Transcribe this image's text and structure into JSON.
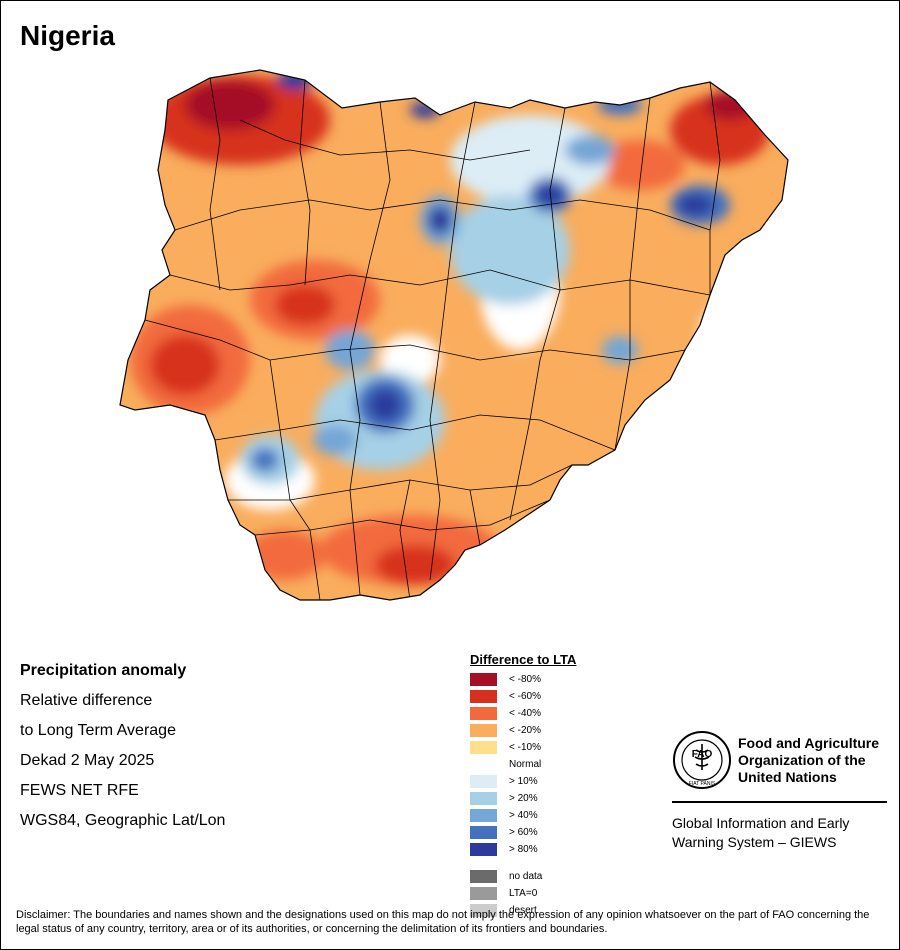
{
  "title": "Nigeria",
  "info": {
    "heading": "Precipitation anomaly",
    "line1": "Relative difference",
    "line2": "to Long Term Average",
    "period": "Dekad 2 May 2025",
    "source": "FEWS NET RFE",
    "projection": "WGS84, Geographic Lat/Lon"
  },
  "legend": {
    "title": "Difference to LTA",
    "classes": [
      {
        "label": "< -80%",
        "color": "#a50f26"
      },
      {
        "label": "< -60%",
        "color": "#d7301f"
      },
      {
        "label": "< -40%",
        "color": "#f26a3c"
      },
      {
        "label": "< -20%",
        "color": "#f9ad5d"
      },
      {
        "label": "< -10%",
        "color": "#fee08b"
      },
      {
        "label": "Normal",
        "color": "#ffffff"
      },
      {
        "label": "> 10%",
        "color": "#dcedf6"
      },
      {
        "label": "> 20%",
        "color": "#a6d0e6"
      },
      {
        "label": "> 40%",
        "color": "#74a6d6"
      },
      {
        "label": "> 60%",
        "color": "#4371c0"
      },
      {
        "label": "> 80%",
        "color": "#2b3a9c"
      }
    ],
    "special": [
      {
        "label": "no data",
        "color": "#6b6b6b"
      },
      {
        "label": "LTA=0",
        "color": "#9a9a9a"
      },
      {
        "label": "desert",
        "color": "#cccccc"
      }
    ]
  },
  "org": {
    "logo_text": "FAO",
    "logo_motto": "FIAT PANIS",
    "name_line1": "Food and Agriculture",
    "name_line2": "Organization of the",
    "name_line3": "United Nations",
    "system_line1": "Global Information and Early",
    "system_line2": "Warning System – GIEWS"
  },
  "disclaimer": "Disclaimer: The boundaries and names shown and the designations used on this map do not imply the expression of any opinion whatsoever on the part of FAO concerning the legal status of any country, territory, area or of its authorities, or concerning the delimitation of its frontiers and boundaries."
}
